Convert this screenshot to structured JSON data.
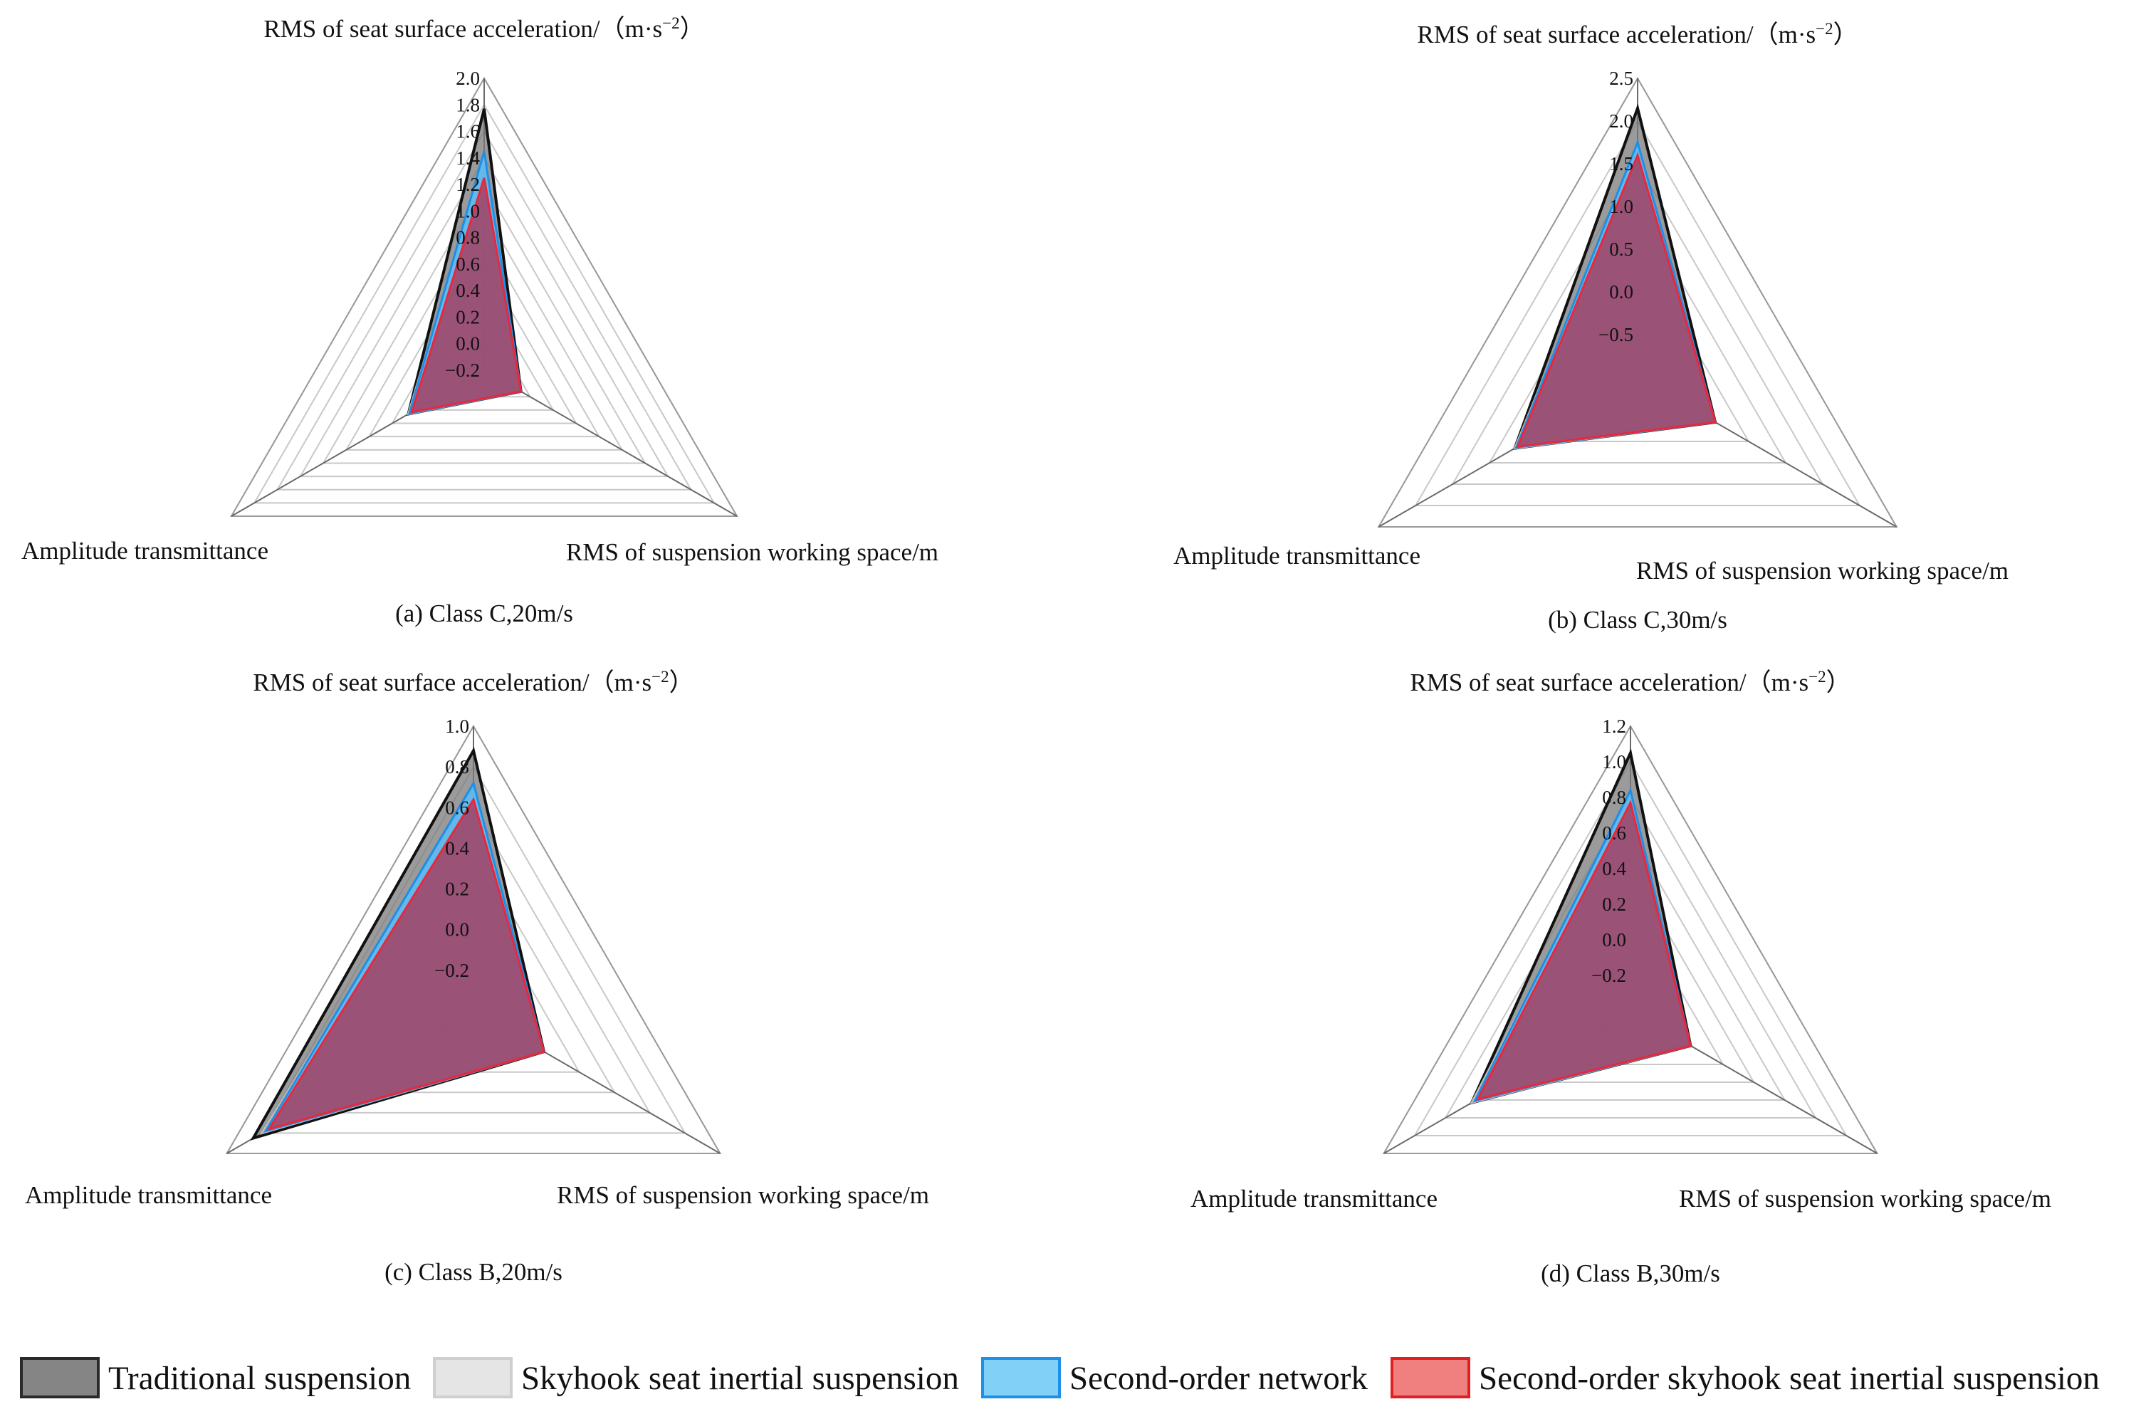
{
  "chart_data": [
    {
      "type": "radar",
      "caption": "(a) Class C,20m/s",
      "axes": [
        "RMS of seat surface acceleration/（m·s",
        "RMS of suspension working space/m",
        "Amplitude transmittance"
      ],
      "axis_unit_superscript": "−2",
      "axis_unit_close": "）",
      "ticks": [
        "−0.2",
        "0.0",
        "0.2",
        "0.4",
        "0.6",
        "0.8",
        "1.0",
        "1.2",
        "1.4",
        "1.6",
        "1.8",
        "2.0"
      ],
      "range": [
        -0.2,
        2.0
      ],
      "series": [
        {
          "name": "Traditional suspension",
          "values": [
            1.77,
            0.12,
            0.46
          ]
        },
        {
          "name": "Skyhook seat inertial suspension",
          "values": [
            1.4,
            0.12,
            0.46
          ]
        },
        {
          "name": "Second-order network",
          "values": [
            1.45,
            0.12,
            0.45
          ]
        },
        {
          "name": "Second-order skyhook seat inertial suspension",
          "values": [
            1.25,
            0.12,
            0.43
          ]
        }
      ]
    },
    {
      "type": "radar",
      "caption": "(b) Class C,30m/s",
      "axes": [
        "RMS of seat surface acceleration/（m·s",
        "RMS of suspension working space/m",
        "Amplitude transmittance"
      ],
      "axis_unit_superscript": "−2",
      "axis_unit_close": "）",
      "ticks": [
        "−0.5",
        "0.0",
        "0.5",
        "1.0",
        "1.5",
        "2.0",
        "2.5"
      ],
      "range": [
        -1.0,
        2.5
      ],
      "series": [
        {
          "name": "Traditional suspension",
          "values": [
            2.15,
            0.05,
            0.66
          ]
        },
        {
          "name": "Skyhook seat inertial suspension",
          "values": [
            1.7,
            0.05,
            0.66
          ]
        },
        {
          "name": "Second-order network",
          "values": [
            1.75,
            0.05,
            0.64
          ]
        },
        {
          "name": "Second-order skyhook seat inertial suspension",
          "values": [
            1.6,
            0.05,
            0.62
          ]
        }
      ]
    },
    {
      "type": "radar",
      "caption": "(c) Class B,20m/s",
      "axes": [
        "RMS of seat surface acceleration/（m·s",
        "RMS of suspension working space/m",
        "Amplitude transmittance"
      ],
      "axis_unit_superscript": "−2",
      "axis_unit_close": "）",
      "ticks": [
        "−0.2",
        "0.0",
        "0.2",
        "0.4",
        "0.6",
        "0.8",
        "1.0"
      ],
      "range": [
        -0.4,
        1.0
      ],
      "series": [
        {
          "name": "Traditional suspension",
          "values": [
            0.88,
            0.0,
            0.85
          ]
        },
        {
          "name": "Skyhook seat inertial suspension",
          "values": [
            0.68,
            0.0,
            0.8
          ]
        },
        {
          "name": "Second-order network",
          "values": [
            0.72,
            0.0,
            0.78
          ]
        },
        {
          "name": "Second-order skyhook seat inertial suspension",
          "values": [
            0.64,
            0.0,
            0.76
          ]
        }
      ]
    },
    {
      "type": "radar",
      "caption": "(d) Class B,30m/s",
      "axes": [
        "RMS of seat surface acceleration/（m·s",
        "RMS of suspension working space/m",
        "Amplitude transmittance"
      ],
      "axis_unit_superscript": "−2",
      "axis_unit_close": "）",
      "ticks": [
        "−0.2",
        "0.0",
        "0.2",
        "0.4",
        "0.6",
        "0.8",
        "1.0",
        "1.2"
      ],
      "range": [
        -0.4,
        1.2
      ],
      "series": [
        {
          "name": "Traditional suspension",
          "values": [
            1.05,
            -0.01,
            0.63
          ]
        },
        {
          "name": "Skyhook seat inertial suspension",
          "values": [
            0.8,
            -0.01,
            0.63
          ]
        },
        {
          "name": "Second-order network",
          "values": [
            0.84,
            -0.01,
            0.61
          ]
        },
        {
          "name": "Second-order skyhook seat inertial suspension",
          "values": [
            0.77,
            -0.01,
            0.59
          ]
        }
      ]
    }
  ],
  "legend": [
    {
      "name": "Traditional suspension",
      "fill": "#858585",
      "stroke": "#2a2a2a"
    },
    {
      "name": "Skyhook seat inertial suspension",
      "fill": "#e5e5e5",
      "stroke": "#cfcfcf"
    },
    {
      "name": "Second-order network",
      "fill": "#80d0f8",
      "stroke": "#1e90e6"
    },
    {
      "name": "Second-order skyhook seat inertial suspension",
      "fill": "#f08080",
      "stroke": "#e02020"
    }
  ],
  "series_styles": [
    {
      "fill": "#7a7a7a",
      "fill_opacity": 0.75,
      "stroke": "#111111"
    },
    {
      "fill": "#d9d9d9",
      "fill_opacity": 0.55,
      "stroke": "#bdbdbd"
    },
    {
      "fill": "#5ab8ef",
      "fill_opacity": 0.9,
      "stroke": "#1e8fe6"
    },
    {
      "fill": "#b02a4a",
      "fill_opacity": 0.72,
      "stroke": "#e8283c"
    }
  ]
}
